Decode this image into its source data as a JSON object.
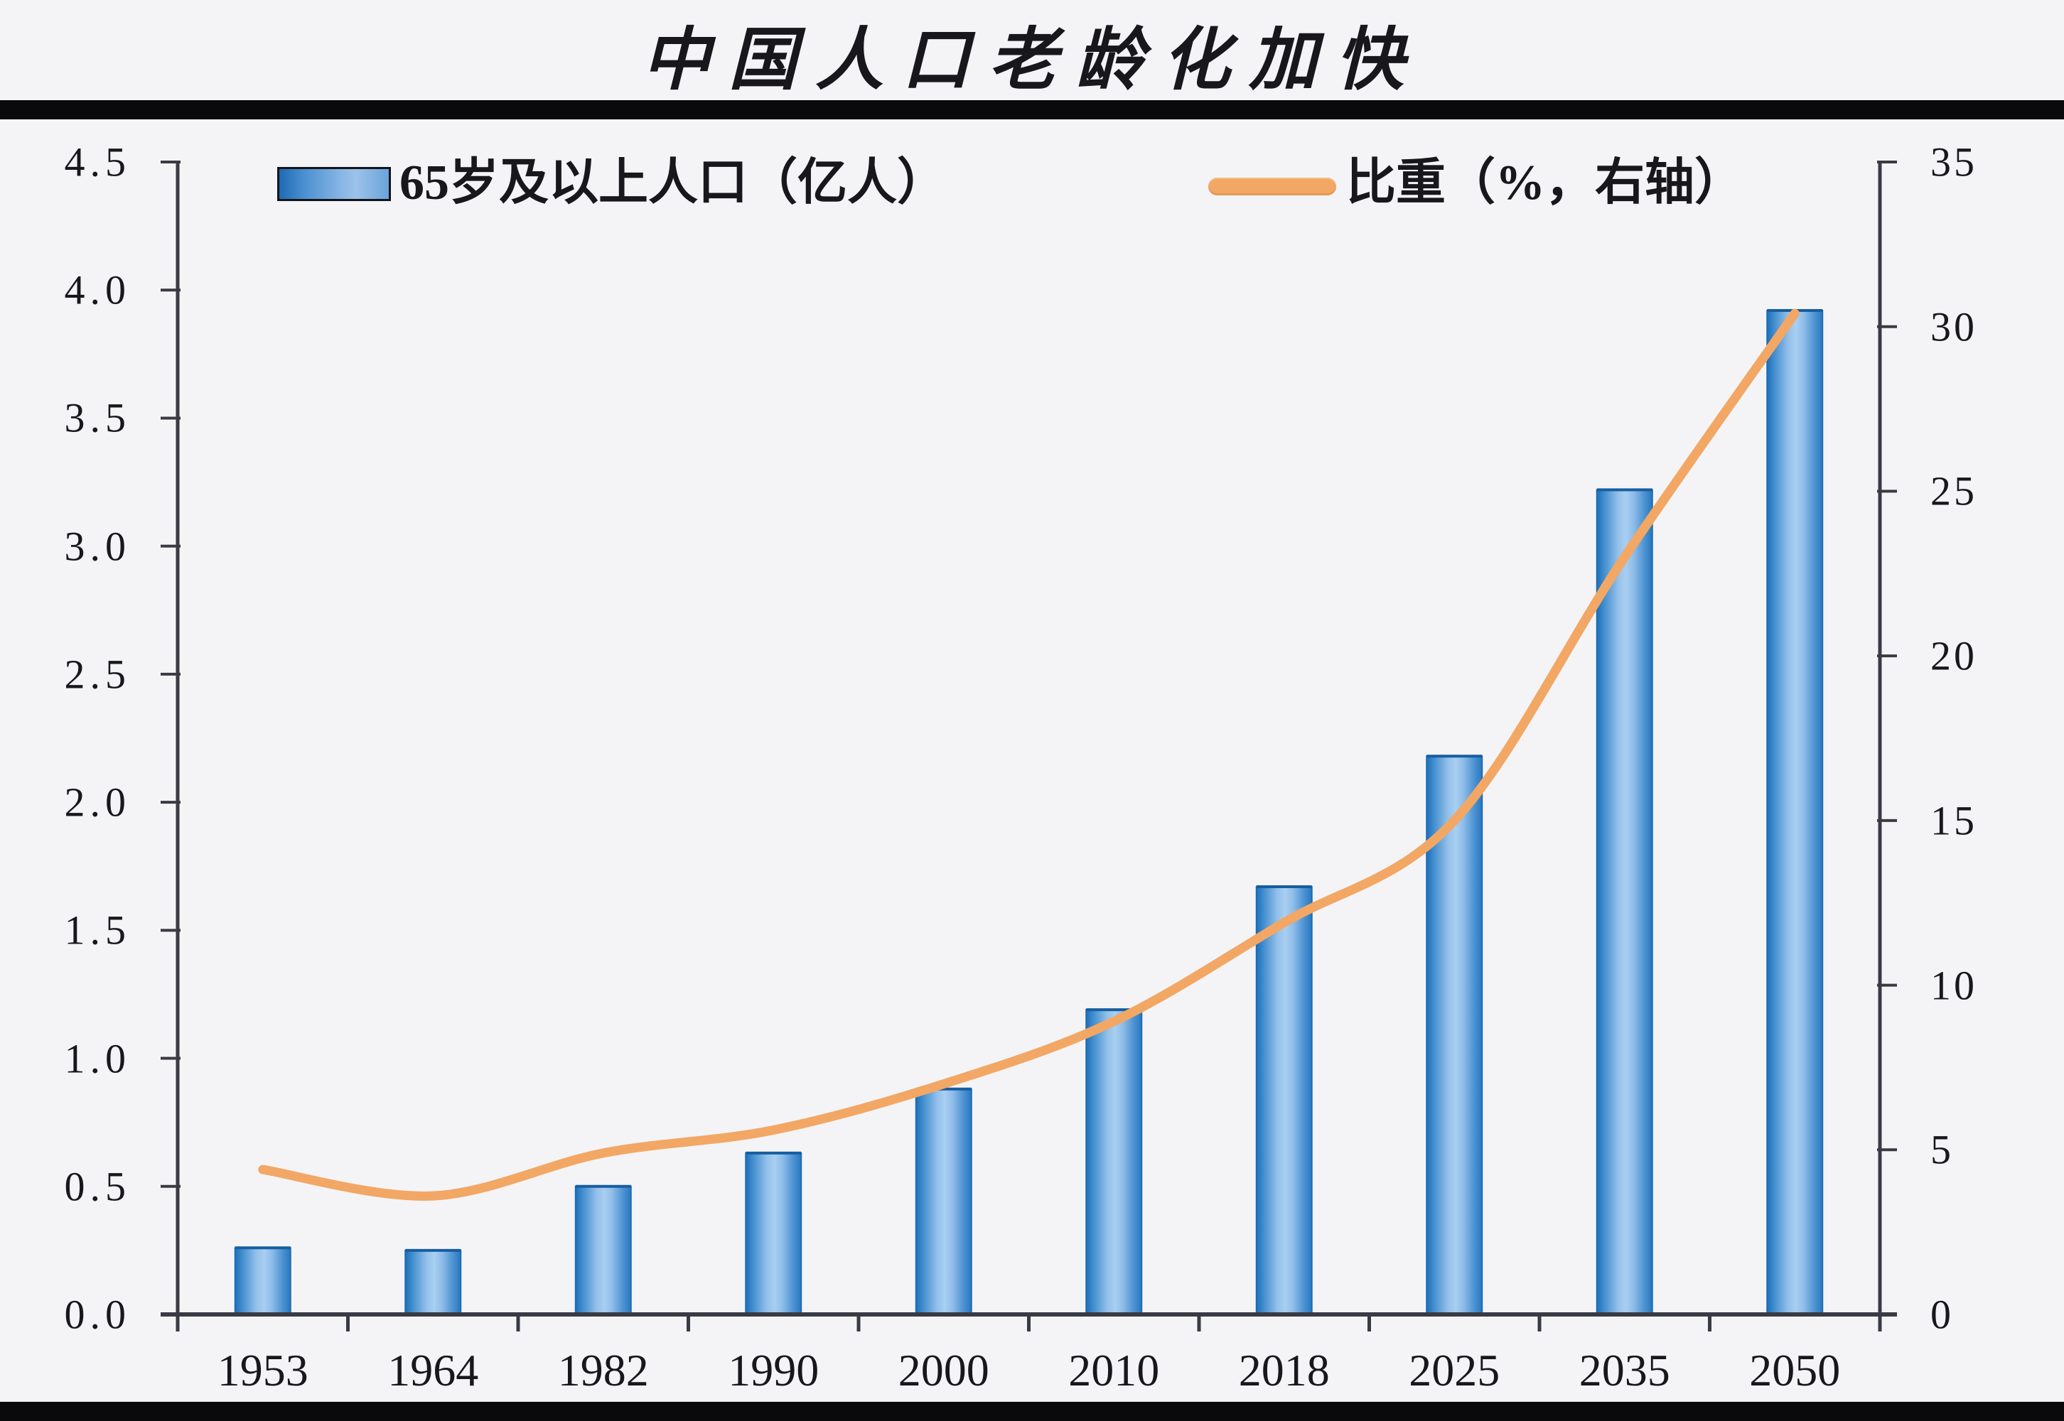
{
  "title": "中国人口老龄化加快",
  "legend": {
    "bar_label": "65岁及以上人口（亿人）",
    "line_label": "比重（%，右轴）"
  },
  "colors": {
    "background": "#f4f4f6",
    "black_rule": "#0a0a0d",
    "axis": "#3a3a44",
    "text": "#17171c",
    "line": "#f2a765",
    "bar_border": "#1d6cb4",
    "bar_top_cap": "#175e9f",
    "bar_gradient_stops": [
      "#1e6fb9",
      "#3f8ccd",
      "#93c0ea",
      "#a9cff1",
      "#8fbde9",
      "#4f94d3",
      "#2878c0"
    ],
    "bar_gradient_offsets": [
      0,
      0.12,
      0.38,
      0.52,
      0.66,
      0.85,
      1
    ],
    "legend_swatch_gradient": [
      "#1e6ab3",
      "#9cc3ea"
    ]
  },
  "chart_data": {
    "type": "bar+line combo",
    "title": "中国人口老龄化加快",
    "categories": [
      "1953",
      "1964",
      "1982",
      "1990",
      "2000",
      "2010",
      "2018",
      "2025",
      "2035",
      "2050"
    ],
    "series": [
      {
        "name": "65岁及以上人口（亿人）",
        "type": "bar",
        "axis": "left",
        "values": [
          0.26,
          0.25,
          0.5,
          0.63,
          0.88,
          1.19,
          1.67,
          2.18,
          3.22,
          3.92
        ]
      },
      {
        "name": "比重（%，右轴）",
        "type": "line",
        "axis": "right",
        "values": [
          4.4,
          3.6,
          4.9,
          5.6,
          7.0,
          8.9,
          11.9,
          15.0,
          23.0,
          30.4
        ]
      }
    ],
    "left_axis": {
      "min": 0,
      "max": 4.5,
      "step": 0.5,
      "ticks": [
        "0.0",
        "0.5",
        "1.0",
        "1.5",
        "2.0",
        "2.5",
        "3.0",
        "3.5",
        "4.0",
        "4.5"
      ]
    },
    "right_axis": {
      "min": 0,
      "max": 35,
      "step": 5,
      "ticks": [
        "0",
        "5",
        "10",
        "15",
        "20",
        "25",
        "30",
        "35"
      ]
    },
    "grid": false,
    "legend_position": "top-left",
    "smooth_line": true
  }
}
